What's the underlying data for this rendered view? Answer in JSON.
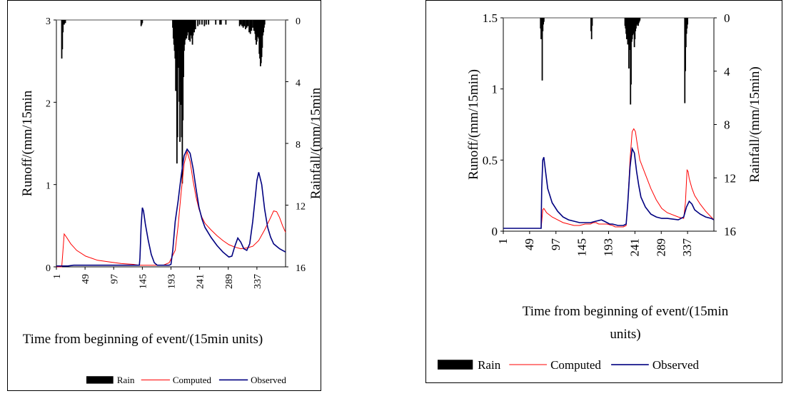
{
  "chart_data": [
    {
      "type": "line",
      "xlabel": "Time from beginning of event/(15min units)",
      "ylabel": "Runoff/(mm/15min",
      "y2label": "Rainfall/(mm/15min",
      "xlim": [
        1,
        385
      ],
      "ylim": [
        0,
        3
      ],
      "y2lim": [
        16,
        0
      ],
      "xticks": [
        "1",
        "49",
        "97",
        "145",
        "193",
        "241",
        "289",
        "337"
      ],
      "yticks": [
        "0",
        "1",
        "2",
        "3"
      ],
      "y2ticks": [
        "0",
        "4",
        "8",
        "12",
        "16"
      ],
      "legend": [
        "Rain",
        "Computed",
        "Observed"
      ],
      "legend_position": "bottom",
      "colors": {
        "rain": "#000000",
        "computed": "#ff0000",
        "observed": "#000080"
      },
      "rain": {
        "x": [
          10,
          11,
          12,
          13,
          14,
          15,
          16,
          143,
          144,
          145,
          196,
          197,
          198,
          199,
          200,
          201,
          202,
          203,
          204,
          205,
          206,
          207,
          208,
          209,
          210,
          211,
          212,
          213,
          214,
          215,
          216,
          217,
          218,
          219,
          220,
          221,
          222,
          223,
          224,
          225,
          226,
          227,
          228,
          229,
          230,
          231,
          232,
          233,
          234,
          238,
          241,
          245,
          249,
          252,
          256,
          268,
          275,
          277,
          285,
          308,
          310,
          312,
          314,
          316,
          318,
          320,
          322,
          324,
          326,
          328,
          330,
          332,
          334,
          335,
          336,
          337,
          338,
          339,
          340,
          341,
          342,
          343,
          344,
          345,
          346,
          347,
          348,
          349,
          350
        ],
        "values": [
          2.5,
          1.9,
          0.8,
          0.3,
          0.3,
          0.2,
          0.2,
          0.4,
          0.3,
          0.2,
          0.5,
          1.2,
          1.6,
          2.0,
          2.5,
          4.6,
          3.3,
          9.3,
          7.6,
          3.1,
          2.0,
          5.3,
          7.9,
          4.0,
          5.5,
          7.6,
          10.6,
          6.5,
          3.7,
          2.0,
          1.6,
          1.3,
          1.0,
          1.2,
          1.0,
          0.7,
          0.8,
          1.3,
          1.0,
          1.4,
          1.0,
          0.8,
          1.2,
          1.6,
          1.0,
          0.6,
          0.8,
          0.6,
          0.6,
          0.4,
          0.3,
          0.3,
          0.4,
          0.3,
          0.3,
          0.3,
          0.3,
          0.3,
          0.3,
          0.4,
          0.3,
          0.4,
          0.5,
          0.4,
          0.6,
          0.5,
          0.4,
          0.8,
          0.9,
          0.7,
          0.5,
          0.7,
          0.9,
          1.3,
          1.6,
          1.4,
          1.1,
          1.0,
          1.2,
          2.2,
          2.5,
          3.0,
          2.8,
          2.4,
          1.8,
          1.0,
          0.8,
          0.5,
          0.3
        ]
      },
      "series": [
        {
          "name": "Computed",
          "x": [
            1,
            10,
            14,
            18,
            25,
            35,
            50,
            70,
            90,
            110,
            130,
            140,
            143,
            150,
            160,
            170,
            180,
            190,
            200,
            205,
            210,
            215,
            220,
            225,
            230,
            235,
            240,
            245,
            250,
            260,
            270,
            280,
            290,
            300,
            310,
            320,
            330,
            340,
            350,
            360,
            365,
            370,
            375,
            380,
            385
          ],
          "y": [
            0,
            0,
            0.4,
            0.36,
            0.28,
            0.2,
            0.13,
            0.08,
            0.06,
            0.04,
            0.03,
            0.02,
            0.02,
            0.02,
            0.02,
            0.02,
            0.02,
            0.05,
            0.2,
            0.5,
            0.9,
            1.25,
            1.4,
            1.28,
            1.05,
            0.85,
            0.7,
            0.6,
            0.53,
            0.45,
            0.38,
            0.32,
            0.27,
            0.24,
            0.22,
            0.23,
            0.25,
            0.32,
            0.45,
            0.6,
            0.68,
            0.67,
            0.6,
            0.5,
            0.42
          ]
        },
        {
          "name": "Observed",
          "x": [
            1,
            20,
            30,
            60,
            100,
            120,
            140,
            141,
            143,
            145,
            147,
            150,
            155,
            160,
            165,
            170,
            180,
            190,
            193,
            196,
            200,
            205,
            210,
            215,
            220,
            225,
            230,
            235,
            240,
            245,
            250,
            260,
            270,
            280,
            290,
            295,
            300,
            305,
            310,
            315,
            320,
            325,
            330,
            335,
            337,
            340,
            345,
            350,
            355,
            360,
            365,
            370,
            375,
            380,
            385
          ],
          "y": [
            0.01,
            0.01,
            0.02,
            0.02,
            0.02,
            0.02,
            0.02,
            0.1,
            0.5,
            0.72,
            0.68,
            0.52,
            0.32,
            0.15,
            0.05,
            0.02,
            0.02,
            0.02,
            0.03,
            0.2,
            0.55,
            0.8,
            1.1,
            1.35,
            1.43,
            1.38,
            1.2,
            0.95,
            0.72,
            0.58,
            0.48,
            0.36,
            0.26,
            0.18,
            0.12,
            0.13,
            0.25,
            0.35,
            0.3,
            0.22,
            0.2,
            0.28,
            0.55,
            0.9,
            1.05,
            1.15,
            1.0,
            0.7,
            0.48,
            0.36,
            0.28,
            0.25,
            0.22,
            0.2,
            0.18
          ]
        }
      ]
    },
    {
      "type": "line",
      "xlabel": "Time from beginning of event/(15min units)",
      "ylabel": "Runoff/(mm/15min)",
      "y2label": "Rainfall/(mm/15min)",
      "xlim": [
        1,
        385
      ],
      "ylim": [
        0,
        1.5
      ],
      "y2lim": [
        16,
        0
      ],
      "xticks": [
        "1",
        "49",
        "97",
        "145",
        "193",
        "241",
        "289",
        "337"
      ],
      "yticks": [
        "0",
        "0.5",
        "1",
        "1.5"
      ],
      "y2ticks": [
        "0",
        "4",
        "8",
        "12",
        "16"
      ],
      "legend": [
        "Rain",
        "Computed",
        "Observed"
      ],
      "legend_position": "bottom",
      "colors": {
        "rain": "#000000",
        "computed": "#ff0000",
        "observed": "#000080"
      },
      "rain": {
        "x": [
          69,
          70,
          71,
          72,
          73,
          74,
          75,
          161,
          162,
          163,
          223,
          224,
          225,
          226,
          227,
          228,
          229,
          230,
          231,
          232,
          233,
          234,
          235,
          236,
          237,
          238,
          239,
          240,
          241,
          242,
          243,
          244,
          245,
          246,
          247,
          248,
          249,
          250,
          332,
          333,
          334,
          335,
          336,
          337
        ],
        "values": [
          0.8,
          1.6,
          1.2,
          4.7,
          1.0,
          0.5,
          0.3,
          1.0,
          1.6,
          0.6,
          0.6,
          0.8,
          1.2,
          1.6,
          1.0,
          2.0,
          1.6,
          3.8,
          2.4,
          1.4,
          6.5,
          5.0,
          1.8,
          1.6,
          1.3,
          1.0,
          1.2,
          2.2,
          1.6,
          1.0,
          0.8,
          0.6,
          0.5,
          0.4,
          0.6,
          0.4,
          0.3,
          0.2,
          6.4,
          4.0,
          2.2,
          1.2,
          0.8,
          0.5
        ]
      },
      "series": [
        {
          "name": "Computed",
          "x": [
            1,
            70,
            73,
            75,
            80,
            90,
            100,
            110,
            120,
            130,
            140,
            150,
            160,
            165,
            170,
            175,
            180,
            190,
            200,
            205,
            210,
            220,
            225,
            228,
            232,
            236,
            239,
            242,
            245,
            250,
            260,
            270,
            280,
            290,
            300,
            320,
            330,
            333,
            336,
            338,
            340,
            345,
            350,
            360,
            370,
            380,
            385
          ],
          "y": [
            0.02,
            0.02,
            0.15,
            0.16,
            0.13,
            0.1,
            0.08,
            0.06,
            0.05,
            0.04,
            0.04,
            0.05,
            0.05,
            0.06,
            0.06,
            0.05,
            0.05,
            0.05,
            0.04,
            0.03,
            0.03,
            0.03,
            0.04,
            0.2,
            0.5,
            0.7,
            0.72,
            0.7,
            0.62,
            0.5,
            0.4,
            0.3,
            0.22,
            0.16,
            0.13,
            0.1,
            0.09,
            0.2,
            0.43,
            0.42,
            0.37,
            0.3,
            0.25,
            0.19,
            0.14,
            0.1,
            0.08
          ]
        },
        {
          "name": "Observed",
          "x": [
            1,
            70,
            71,
            73,
            75,
            78,
            82,
            90,
            100,
            110,
            120,
            140,
            150,
            160,
            170,
            180,
            185,
            190,
            195,
            200,
            210,
            220,
            225,
            228,
            232,
            236,
            240,
            244,
            248,
            252,
            260,
            270,
            280,
            290,
            300,
            320,
            330,
            335,
            340,
            345,
            350,
            360,
            370,
            380,
            385
          ],
          "y": [
            0.02,
            0.02,
            0.3,
            0.5,
            0.52,
            0.42,
            0.3,
            0.2,
            0.14,
            0.1,
            0.08,
            0.06,
            0.06,
            0.06,
            0.07,
            0.08,
            0.07,
            0.06,
            0.05,
            0.05,
            0.04,
            0.04,
            0.05,
            0.2,
            0.45,
            0.58,
            0.55,
            0.42,
            0.32,
            0.24,
            0.17,
            0.12,
            0.1,
            0.09,
            0.09,
            0.08,
            0.1,
            0.17,
            0.21,
            0.19,
            0.15,
            0.12,
            0.1,
            0.09,
            0.08
          ]
        }
      ]
    }
  ]
}
